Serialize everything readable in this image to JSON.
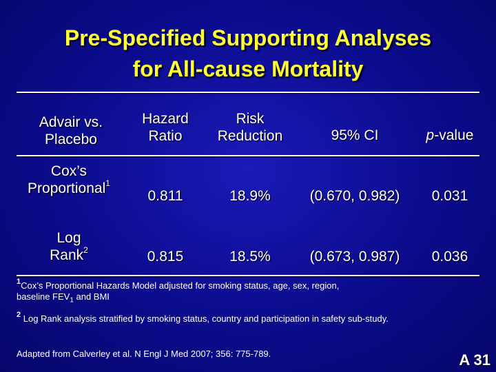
{
  "title": {
    "line1": "Pre-Specified Supporting Analyses",
    "line2": "for All-cause Mortality"
  },
  "table": {
    "headers": {
      "comparison_line1": "Advair vs.",
      "comparison_line2": "Placebo",
      "hr_line1": "Hazard",
      "hr_line2": "Ratio",
      "rr_line1": "Risk",
      "rr_line2": "Reduction",
      "ci": "95% CI",
      "p_italic": "p",
      "p_rest": "-value"
    },
    "rows": [
      {
        "name_line1": "Cox’s",
        "name_line2": "Proportional",
        "sup": "1",
        "hazard_ratio": "0.811",
        "risk_reduction": "18.9%",
        "ci": "(0.670, 0.982)",
        "p_value": "0.031"
      },
      {
        "name_line1": "Log",
        "name_line2": "Rank",
        "sup": "2",
        "hazard_ratio": "0.815",
        "risk_reduction": "18.5%",
        "ci": "(0.673, 0.987)",
        "p_value": "0.036"
      }
    ]
  },
  "footnotes": {
    "fn1_sup": "1",
    "fn1_text_a": "Cox’s Proportional Hazards Model adjusted for smoking status, age, sex, region,",
    "fn1_text_b": "baseline FEV",
    "fn1_sub": "1",
    "fn1_text_c": " and BMI",
    "fn2_sup": "2",
    "fn2_text": " Log Rank analysis stratified by smoking status, country and participation in safety sub-study.",
    "source": "Adapted from Calverley et al. N Engl J Med 2007; 356: 775-789."
  },
  "slide_number": "A 31",
  "colors": {
    "background": "#0b0b8c",
    "title": "#ffff33",
    "text": "#ffffff"
  }
}
